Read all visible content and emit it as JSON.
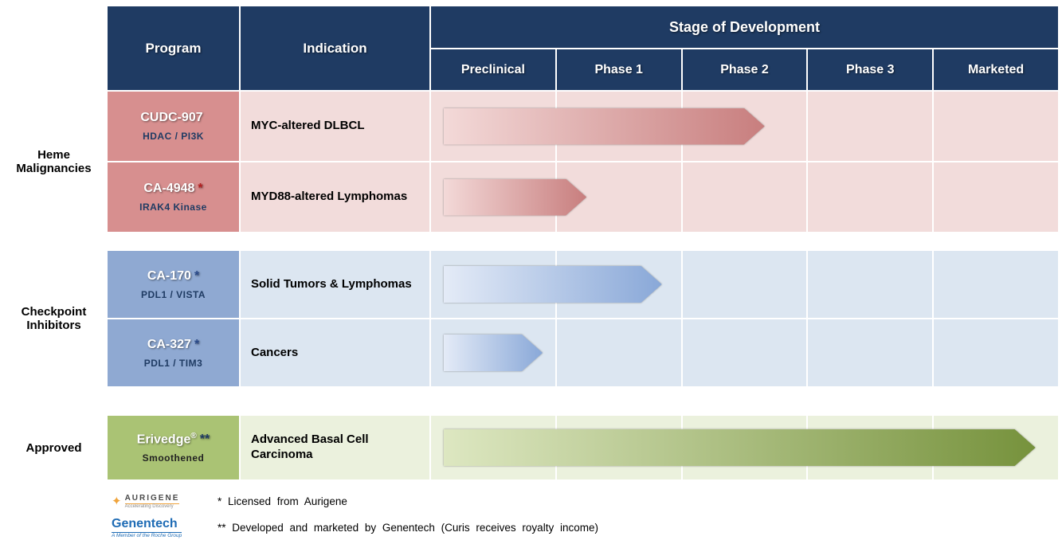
{
  "colors": {
    "header_navy": "#1f3b63",
    "heme_program_cell": "#d78f8f",
    "heme_row_bg": "#f2dcdb",
    "checkpoint_program_cell": "#8fa9d2",
    "checkpoint_row_bg": "#dce6f1",
    "approved_program_cell": "#aac374",
    "approved_row_bg": "#ebf1dd",
    "arrow_pink_end": "#c87e7e",
    "arrow_blue_end": "#89a8d8",
    "arrow_green_end": "#76923c"
  },
  "header": {
    "program": "Program",
    "indication": "Indication",
    "stage_title": "Stage of Development",
    "stages": [
      "Preclinical",
      "Phase 1",
      "Phase 2",
      "Phase 3",
      "Marketed"
    ]
  },
  "groups": [
    {
      "label": "Heme Malignancies",
      "rows": [
        {
          "program": "CUDC-907",
          "marker": "",
          "target": "HDAC / PI3K",
          "indication": "MYC-altered DLBCL",
          "end": 2.66
        },
        {
          "program": "CA-4948",
          "marker": "*",
          "target": "IRAK4 Kinase",
          "indication": "MYD88-altered Lymphomas",
          "end": 1.24
        }
      ]
    },
    {
      "label": "Checkpoint Inhibitors",
      "rows": [
        {
          "program": "CA-170",
          "marker": "*",
          "target": "PDL1 / VISTA",
          "indication": "Solid Tumors & Lymphomas",
          "end": 1.84
        },
        {
          "program": "CA-327",
          "marker": "*",
          "target": "PDL1 / TIM3",
          "indication": "Cancers",
          "end": 0.89
        }
      ]
    },
    {
      "label": "Approved",
      "rows": [
        {
          "program": "Erivedge",
          "sup": "®",
          "marker": "**",
          "target": "Smoothened",
          "indication": "Advanced Basal Cell Carcinoma",
          "end": 4.82
        }
      ]
    }
  ],
  "footer": {
    "aurigene_logo": "AURIGENE",
    "aurigene_tagline": "Accelerating Discovery",
    "footnote1": "* Licensed from Aurigene",
    "genentech_logo": "Genentech",
    "genentech_tagline": "A Member of the Roche Group",
    "footnote2": "** Developed and marketed by Genentech (Curis receives royalty income)"
  },
  "chart_data": {
    "type": "table",
    "title": "Stage of Development",
    "columns": [
      "Program",
      "Indication",
      "Preclinical",
      "Phase 1",
      "Phase 2",
      "Phase 3",
      "Marketed"
    ],
    "progress_scale": "stages completed: 0 = start of Preclinical, 5 = end of Marketed",
    "rows": [
      {
        "group": "Heme Malignancies",
        "program": "CUDC-907 (HDAC / PI3K)",
        "indication": "MYC-altered DLBCL",
        "progress_stages": 2.66,
        "progress_label": "mid Phase 2"
      },
      {
        "group": "Heme Malignancies",
        "program": "CA-4948* (IRAK4 Kinase)",
        "indication": "MYD88-altered Lymphomas",
        "progress_stages": 1.24,
        "progress_label": "early Phase 1"
      },
      {
        "group": "Checkpoint Inhibitors",
        "program": "CA-170* (PDL1 / VISTA)",
        "indication": "Solid Tumors & Lymphomas",
        "progress_stages": 1.84,
        "progress_label": "late Phase 1"
      },
      {
        "group": "Checkpoint Inhibitors",
        "program": "CA-327* (PDL1 / TIM3)",
        "indication": "Cancers",
        "progress_stages": 0.89,
        "progress_label": "Preclinical"
      },
      {
        "group": "Approved",
        "program": "Erivedge®** (Smoothened)",
        "indication": "Advanced Basal Cell Carcinoma",
        "progress_stages": 4.82,
        "progress_label": "Marketed"
      }
    ]
  }
}
